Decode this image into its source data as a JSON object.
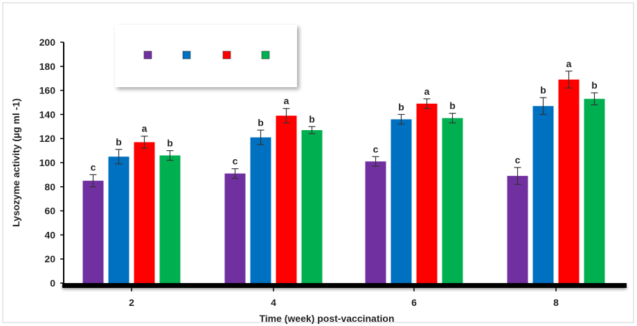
{
  "chart_data": {
    "type": "bar",
    "categories": [
      "2",
      "4",
      "6",
      "8"
    ],
    "xlabel": "Time (week) post-vaccination",
    "ylabel": "Lysozyme activity (µg ml -1)",
    "ylim": [
      0,
      200
    ],
    "yticks": [
      0,
      20,
      40,
      60,
      80,
      100,
      120,
      140,
      160,
      180,
      200
    ],
    "grid": false,
    "legend": {
      "placement": "top-left",
      "labels_visible": false
    },
    "series": [
      {
        "color": "#7030A0",
        "values": [
          85,
          91,
          101,
          89
        ],
        "errors": [
          5,
          4,
          4,
          7
        ],
        "letters": [
          "c",
          "c",
          "c",
          "c"
        ]
      },
      {
        "color": "#0070C0",
        "values": [
          105,
          121,
          136,
          147
        ],
        "errors": [
          6,
          6,
          4,
          7
        ],
        "letters": [
          "b",
          "b",
          "b",
          "b"
        ]
      },
      {
        "color": "#FF0000",
        "values": [
          117,
          139,
          149,
          169
        ],
        "errors": [
          5,
          6,
          4,
          7
        ],
        "letters": [
          "a",
          "a",
          "a",
          "a"
        ]
      },
      {
        "color": "#00B050",
        "values": [
          106,
          127,
          137,
          153
        ],
        "errors": [
          4,
          3,
          4,
          5
        ],
        "letters": [
          "b",
          "b",
          "b",
          "b"
        ]
      }
    ]
  }
}
